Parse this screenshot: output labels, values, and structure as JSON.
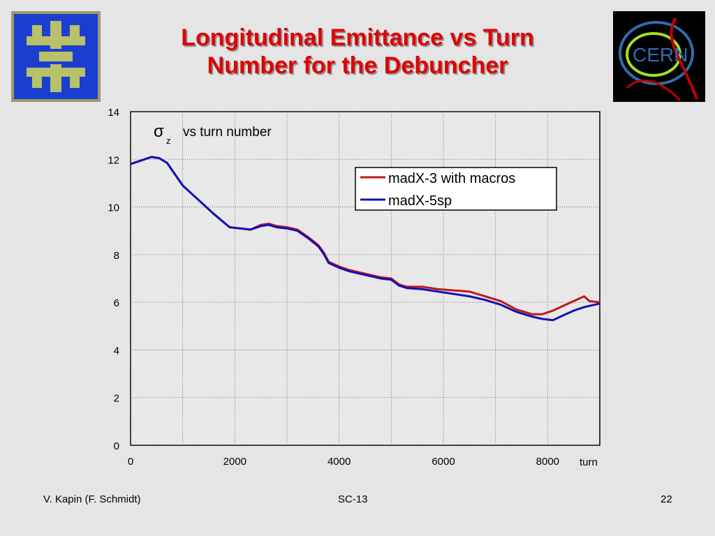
{
  "slide": {
    "title_line1": "Longitudinal Emittance vs Turn",
    "title_line2": "Number for the Debuncher",
    "footer_author": "V. Kapin (F. Schmidt)",
    "footer_conference": "SC-13",
    "footer_page": "22",
    "logos": [
      {
        "name": "fermilab-logo",
        "colors": [
          "#1a3fd0",
          "#b9c06a"
        ]
      },
      {
        "name": "cern-logo",
        "text": "CERN",
        "colors": [
          "#000000",
          "#2f6db0",
          "#c00000",
          "#a6e020"
        ]
      }
    ]
  },
  "chart_data": {
    "type": "line",
    "annotation_symbol": "σ",
    "annotation_subscript": "z",
    "annotation_text": "vs turn number",
    "xlabel": "turn",
    "ylabel": "",
    "xlim": [
      0,
      9000
    ],
    "ylim": [
      0,
      14
    ],
    "xticks": [
      0,
      2000,
      4000,
      6000,
      8000
    ],
    "yticks": [
      0,
      2,
      4,
      6,
      8,
      10,
      12,
      14
    ],
    "grid": true,
    "legend_position": "top-right",
    "series": [
      {
        "name": "madX-3 with macros",
        "color": "#c01818",
        "x": [
          0,
          200,
          400,
          550,
          700,
          1000,
          1300,
          1600,
          1900,
          2100,
          2300,
          2500,
          2650,
          2800,
          3000,
          3200,
          3400,
          3600,
          3700,
          3800,
          4000,
          4200,
          4500,
          4800,
          5000,
          5150,
          5300,
          5600,
          5900,
          6200,
          6500,
          6800,
          7100,
          7400,
          7700,
          7900,
          8100,
          8300,
          8500,
          8700,
          8800,
          9000
        ],
        "y": [
          11.8,
          11.95,
          12.1,
          12.05,
          11.85,
          10.9,
          10.3,
          9.7,
          9.15,
          9.1,
          9.05,
          9.25,
          9.3,
          9.2,
          9.15,
          9.05,
          8.75,
          8.4,
          8.1,
          7.7,
          7.5,
          7.35,
          7.2,
          7.05,
          7.0,
          6.75,
          6.65,
          6.65,
          6.55,
          6.5,
          6.45,
          6.25,
          6.05,
          5.7,
          5.5,
          5.5,
          5.65,
          5.85,
          6.05,
          6.25,
          6.05,
          6.0
        ]
      },
      {
        "name": "madX-5sp",
        "color": "#1010b8",
        "x": [
          0,
          200,
          400,
          550,
          700,
          1000,
          1300,
          1600,
          1900,
          2100,
          2300,
          2500,
          2650,
          2800,
          3000,
          3200,
          3400,
          3600,
          3700,
          3800,
          4000,
          4200,
          4500,
          4800,
          5000,
          5150,
          5300,
          5600,
          5900,
          6200,
          6500,
          6800,
          7100,
          7400,
          7700,
          7900,
          8100,
          8300,
          8500,
          8700,
          8800,
          9000
        ],
        "y": [
          11.8,
          11.95,
          12.1,
          12.05,
          11.85,
          10.9,
          10.3,
          9.7,
          9.15,
          9.1,
          9.05,
          9.2,
          9.25,
          9.15,
          9.1,
          9.0,
          8.7,
          8.35,
          8.05,
          7.65,
          7.45,
          7.3,
          7.15,
          7.0,
          6.95,
          6.7,
          6.6,
          6.55,
          6.45,
          6.35,
          6.25,
          6.1,
          5.9,
          5.6,
          5.4,
          5.3,
          5.25,
          5.45,
          5.65,
          5.8,
          5.85,
          5.95
        ]
      }
    ]
  }
}
